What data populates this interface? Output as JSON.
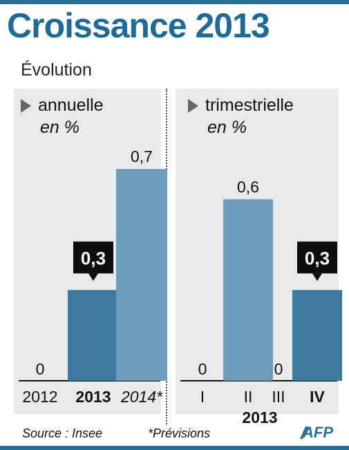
{
  "title": "Croissance 2013",
  "subtitle": "Évolution",
  "colors": {
    "title": "#1f6a96",
    "bar_dark": "#3d7aa0",
    "bar_light": "#6e9dbb",
    "panel_bg": "#e8e9ea",
    "callout": "#0d0d0d"
  },
  "left_panel": {
    "label": "annuelle",
    "unit": "en %"
  },
  "right_panel": {
    "label": "trimestrielle",
    "unit": "en %"
  },
  "chart_data": [
    {
      "type": "bar",
      "title": "annuelle",
      "ylabel": "en %",
      "categories": [
        "2012",
        "2013",
        "2014*"
      ],
      "values": [
        0,
        0.3,
        0.7
      ],
      "value_labels": [
        "0",
        "0,3",
        "0,7"
      ],
      "highlight": "2013",
      "forecast": "2014*",
      "ylim": [
        0,
        0.7
      ]
    },
    {
      "type": "bar",
      "title": "trimestrielle",
      "ylabel": "en %",
      "categories": [
        "I",
        "II",
        "III",
        "IV"
      ],
      "values": [
        0,
        0.6,
        0,
        0.3
      ],
      "value_labels": [
        "0",
        "0,6",
        "0",
        "0,3"
      ],
      "highlight": "IV",
      "xgroup_label": "2013",
      "ylim": [
        0,
        0.7
      ]
    }
  ],
  "footer": {
    "source": "Source : Insee",
    "note": "*Prévisions",
    "logo": "AFP"
  }
}
